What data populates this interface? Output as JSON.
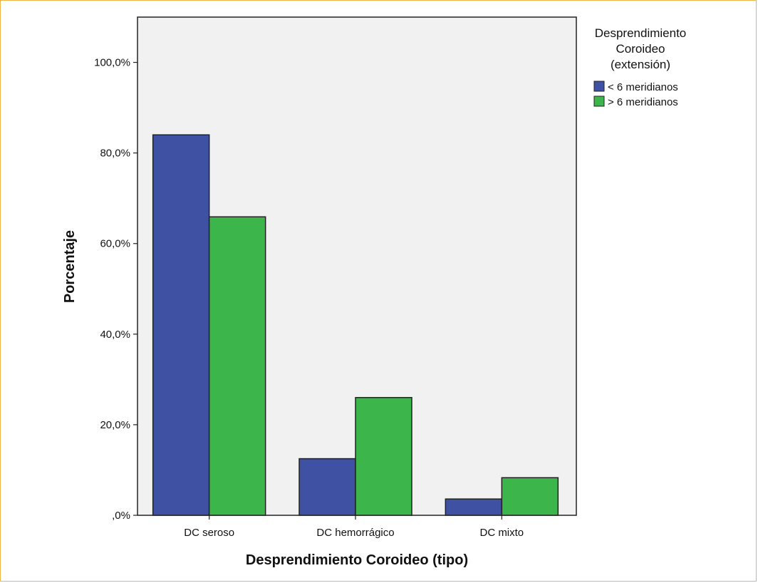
{
  "chart_data": {
    "type": "bar",
    "title": "",
    "xlabel": "Desprendimiento Coroideo (tipo)",
    "ylabel": "Porcentaje",
    "categories": [
      "DC seroso",
      "DC hemorrágico",
      "DC mixto"
    ],
    "series": [
      {
        "name": "< 6 meridianos",
        "color": "#3f51a3",
        "values": [
          84.0,
          12.5,
          3.6
        ]
      },
      {
        "name": "> 6 meridianos",
        "color": "#3cb54a",
        "values": [
          65.9,
          26.0,
          8.3
        ]
      }
    ],
    "ylim": [
      0,
      110
    ],
    "yticks": [
      0,
      20,
      40,
      60,
      80,
      100
    ],
    "ytick_labels": [
      ",0%",
      "20,0%",
      "40,0%",
      "60,0%",
      "80,0%",
      "100,0%"
    ],
    "legend": {
      "title_lines": [
        "Desprendimiento",
        "Coroideo",
        "(extensión)"
      ],
      "position": "right"
    },
    "plot_background": "#f1f1f1",
    "grid": false
  }
}
